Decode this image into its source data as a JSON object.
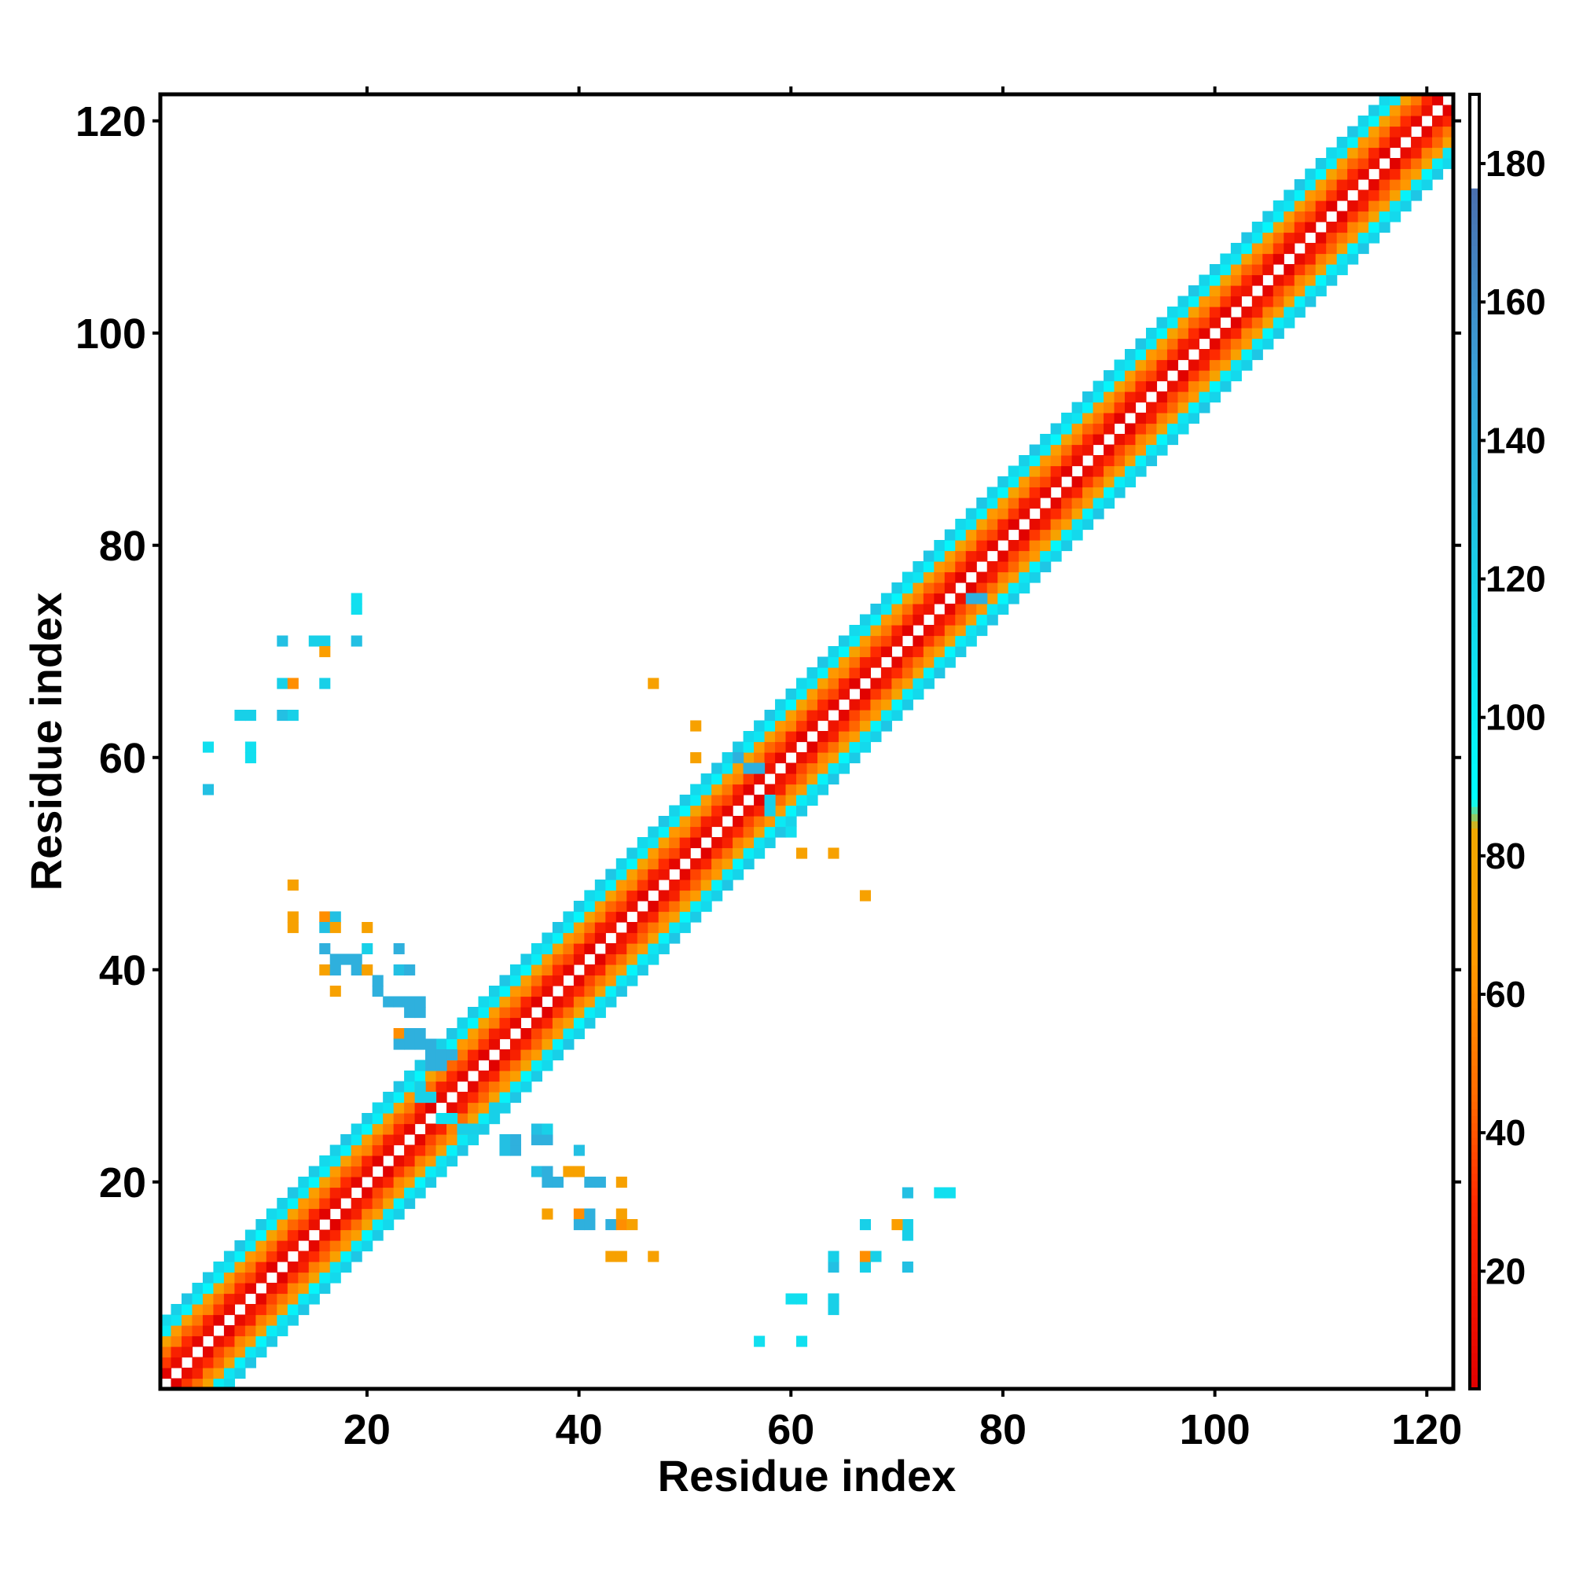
{
  "chart_data": {
    "type": "heatmap",
    "xlabel": "Residue index",
    "ylabel": "Residue index",
    "xlim": [
      1,
      122
    ],
    "ylim": [
      1,
      122
    ],
    "xticks": [
      20,
      40,
      60,
      80,
      100,
      120
    ],
    "yticks": [
      20,
      40,
      60,
      80,
      100,
      120
    ],
    "colorbar": {
      "range": [
        3,
        190
      ],
      "ticks": [
        20,
        40,
        60,
        80,
        100,
        120,
        140,
        160,
        180
      ],
      "stops": [
        {
          "value": 3,
          "color": "#e00000"
        },
        {
          "value": 30,
          "color": "#ff2a00"
        },
        {
          "value": 45,
          "color": "#ff6a00"
        },
        {
          "value": 65,
          "color": "#ff9a00"
        },
        {
          "value": 84,
          "color": "#f0a800"
        },
        {
          "value": 88,
          "color": "#00ffff"
        },
        {
          "value": 120,
          "color": "#18d0e8"
        },
        {
          "value": 150,
          "color": "#3aa0d8"
        },
        {
          "value": 176,
          "color": "#4a70b0"
        },
        {
          "value": 177,
          "color": "#ffffff"
        },
        {
          "value": 190,
          "color": "#ffffff"
        }
      ]
    },
    "band_rule": {
      "description": "near-diagonal contacts |i-j| in 1..6",
      "offset_values": {
        "1": 10,
        "2": 30,
        "3": 50,
        "4": 70,
        "5": 100,
        "6": 120
      }
    },
    "cells": [
      [
        5,
        57,
        130
      ],
      [
        5,
        61,
        110
      ],
      [
        9,
        60,
        110
      ],
      [
        9,
        61,
        110
      ],
      [
        8,
        64,
        120
      ],
      [
        9,
        64,
        120
      ],
      [
        12,
        64,
        130
      ],
      [
        13,
        64,
        120
      ],
      [
        12,
        67,
        120
      ],
      [
        13,
        67,
        60
      ],
      [
        12,
        71,
        130
      ],
      [
        15,
        71,
        120
      ],
      [
        16,
        71,
        120
      ],
      [
        19,
        71,
        130
      ],
      [
        16,
        70,
        70
      ],
      [
        16,
        67,
        120
      ],
      [
        19,
        74,
        110
      ],
      [
        19,
        75,
        110
      ],
      [
        13,
        48,
        75
      ],
      [
        13,
        45,
        75
      ],
      [
        13,
        44,
        75
      ],
      [
        16,
        45,
        60
      ],
      [
        17,
        45,
        130
      ],
      [
        16,
        44,
        130
      ],
      [
        17,
        44,
        75
      ],
      [
        16,
        42,
        140
      ],
      [
        17,
        41,
        140
      ],
      [
        18,
        41,
        140
      ],
      [
        16,
        40,
        75
      ],
      [
        17,
        40,
        140
      ],
      [
        19,
        41,
        140
      ],
      [
        20,
        42,
        120
      ],
      [
        19,
        40,
        140
      ],
      [
        20,
        40,
        75
      ],
      [
        21,
        39,
        140
      ],
      [
        21,
        38,
        140
      ],
      [
        22,
        37,
        140
      ],
      [
        23,
        37,
        140
      ],
      [
        24,
        37,
        140
      ],
      [
        25,
        37,
        140
      ],
      [
        24,
        36,
        140
      ],
      [
        25,
        36,
        140
      ],
      [
        23,
        40,
        130
      ],
      [
        20,
        44,
        75
      ],
      [
        17,
        38,
        75
      ],
      [
        23,
        34,
        60
      ],
      [
        24,
        34,
        140
      ],
      [
        25,
        34,
        140
      ],
      [
        23,
        33,
        140
      ],
      [
        24,
        33,
        140
      ],
      [
        25,
        33,
        140
      ],
      [
        26,
        33,
        140
      ],
      [
        26,
        32,
        140
      ],
      [
        27,
        32,
        140
      ],
      [
        28,
        32,
        140
      ],
      [
        26,
        31,
        140
      ],
      [
        27,
        31,
        140
      ],
      [
        23,
        42,
        140
      ],
      [
        24,
        40,
        140
      ],
      [
        25,
        28,
        120
      ],
      [
        26,
        28,
        120
      ],
      [
        25,
        29,
        120
      ],
      [
        27,
        26,
        110
      ],
      [
        28,
        26,
        110
      ],
      [
        29,
        25,
        120
      ],
      [
        30,
        25,
        120
      ],
      [
        32,
        26,
        120
      ],
      [
        32,
        27,
        120
      ],
      [
        33,
        24,
        130
      ],
      [
        33,
        23,
        130
      ],
      [
        34,
        23,
        140
      ],
      [
        34,
        24,
        140
      ],
      [
        36,
        24,
        140
      ],
      [
        37,
        24,
        140
      ],
      [
        36,
        25,
        130
      ],
      [
        37,
        25,
        120
      ],
      [
        36,
        21,
        130
      ],
      [
        37,
        21,
        140
      ],
      [
        37,
        20,
        140
      ],
      [
        38,
        20,
        140
      ],
      [
        39,
        21,
        75
      ],
      [
        40,
        21,
        75
      ],
      [
        41,
        20,
        140
      ],
      [
        40,
        23,
        130
      ],
      [
        42,
        20,
        140
      ],
      [
        37,
        17,
        75
      ],
      [
        40,
        17,
        60
      ],
      [
        41,
        17,
        140
      ],
      [
        40,
        16,
        140
      ],
      [
        41,
        16,
        140
      ],
      [
        43,
        16,
        140
      ],
      [
        44,
        16,
        60
      ],
      [
        45,
        16,
        75
      ],
      [
        44,
        17,
        75
      ],
      [
        44,
        20,
        75
      ],
      [
        43,
        13,
        75
      ],
      [
        44,
        13,
        75
      ],
      [
        47,
        13,
        75
      ],
      [
        47,
        67,
        75
      ],
      [
        51,
        63,
        75
      ],
      [
        51,
        60,
        75
      ],
      [
        55,
        60,
        140
      ],
      [
        56,
        59,
        140
      ],
      [
        57,
        59,
        140
      ],
      [
        58,
        56,
        120
      ],
      [
        58,
        55,
        120
      ],
      [
        60,
        53,
        110
      ],
      [
        61,
        51,
        75
      ],
      [
        64,
        51,
        75
      ],
      [
        67,
        47,
        75
      ],
      [
        57,
        5,
        110
      ],
      [
        61,
        5,
        110
      ],
      [
        60,
        9,
        110
      ],
      [
        61,
        9,
        110
      ],
      [
        64,
        8,
        120
      ],
      [
        64,
        9,
        120
      ],
      [
        64,
        12,
        130
      ],
      [
        64,
        13,
        120
      ],
      [
        67,
        12,
        120
      ],
      [
        67,
        13,
        60
      ],
      [
        68,
        13,
        120
      ],
      [
        71,
        12,
        130
      ],
      [
        71,
        15,
        120
      ],
      [
        71,
        16,
        120
      ],
      [
        71,
        19,
        130
      ],
      [
        70,
        16,
        70
      ],
      [
        67,
        16,
        120
      ],
      [
        74,
        19,
        110
      ],
      [
        75,
        19,
        110
      ],
      [
        77,
        75,
        140
      ],
      [
        78,
        75,
        140
      ]
    ]
  }
}
